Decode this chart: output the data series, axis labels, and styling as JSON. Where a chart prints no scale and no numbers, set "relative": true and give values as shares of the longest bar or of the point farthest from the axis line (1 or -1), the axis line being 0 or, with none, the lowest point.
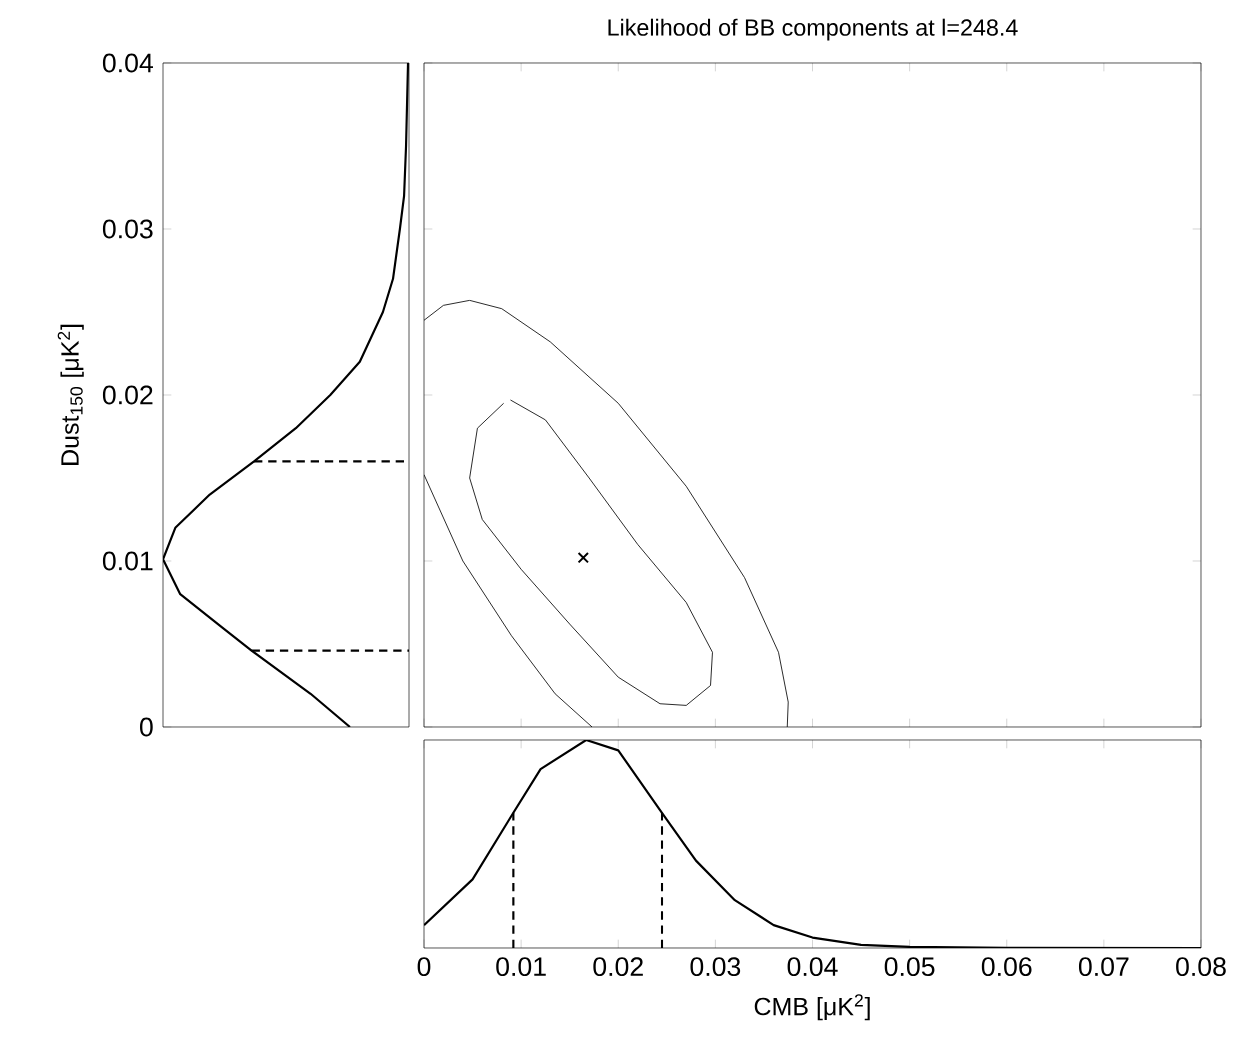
{
  "chart_data": [
    {
      "type": "line",
      "relative": true,
      "orientation": "horizontal",
      "ylabel": "Dust$_{150}$ [μK$^{2}$]",
      "ylim": [
        0,
        0.04
      ],
      "yticks": [
        0,
        0.01,
        0.02,
        0.03,
        0.04
      ],
      "tick_labels": "y",
      "series": [
        {
          "color": "#000000",
          "x": [
            0,
            0.002,
            0.0046,
            0.006,
            0.008,
            0.0101,
            0.012,
            0.014,
            0.016,
            0.018,
            0.02,
            0.022,
            0.025,
            0.027,
            0.03,
            0.032,
            0.035,
            0.04
          ],
          "values": [
            -0.24,
            -0.4,
            -0.64,
            -0.76,
            -0.93,
            -1,
            -0.95,
            -0.81,
            -0.63,
            -0.46,
            -0.32,
            -0.2,
            -0.106,
            -0.065,
            -0.037,
            -0.02,
            -0.012,
            -0.004
          ]
        },
        {
          "color": "#000000",
          "line_style": "dashed",
          "x": [
            0.0046,
            0.0046
          ],
          "values": [
            -0.64,
            0
          ]
        },
        {
          "color": "#000000",
          "line_style": "dashed",
          "x": [
            0.016,
            0.016
          ],
          "values": [
            -0.63,
            0
          ]
        }
      ]
    },
    {
      "type": "line",
      "title": "Likelihood of BB components at l=248.4",
      "xlim": [
        0,
        0.08
      ],
      "ylim": [
        0,
        0.04
      ],
      "xticks": [
        0,
        0.01,
        0.02,
        0.03,
        0.04,
        0.05,
        0.06,
        0.07,
        0.08
      ],
      "yticks": [
        0,
        0.01,
        0.02,
        0.03,
        0.04
      ],
      "tick_labels": false,
      "series": [
        {
          "color": "#000000",
          "x": [
            0.0089,
            0.0125,
            0.017,
            0.022,
            0.027,
            0.0297,
            0.0295,
            0.027,
            0.0243,
            0.02,
            0.015,
            0.01,
            0.006,
            0.0047,
            0.0055,
            0.0082
          ],
          "values": [
            0.0197,
            0.0185,
            0.015,
            0.011,
            0.0075,
            0.0045,
            0.0025,
            0.0013,
            0.0014,
            0.003,
            0.0062,
            0.0095,
            0.0125,
            0.015,
            0.018,
            0.0195
          ]
        },
        {
          "color": "#000000",
          "x": [
            0,
            0.002,
            0.0047,
            0.008,
            0.013,
            0.02,
            0.027,
            0.033,
            0.0365,
            0.0375,
            0.0374
          ],
          "values": [
            0.0245,
            0.0254,
            0.0257,
            0.0252,
            0.0232,
            0.0195,
            0.0145,
            0.009,
            0.0045,
            0.0015,
            0
          ]
        },
        {
          "color": "#000000",
          "x": [
            0,
            0.004,
            0.009,
            0.0135,
            0.0173
          ],
          "values": [
            0.0152,
            0.01,
            0.0055,
            0.002,
            0
          ]
        },
        {
          "type": "scatter",
          "color": "#000000",
          "marker": "cross",
          "x": [
            0.0164
          ],
          "values": [
            0.0102
          ]
        }
      ]
    },
    {
      "type": "line",
      "relative": true,
      "xlabel": "CMB [μK$^{2}$]",
      "xlim": [
        0,
        0.08
      ],
      "xticks": [
        0,
        0.01,
        0.02,
        0.03,
        0.04,
        0.05,
        0.06,
        0.07,
        0.08
      ],
      "tick_labels": "x",
      "series": [
        {
          "color": "#000000",
          "x": [
            0,
            0.005,
            0.0092,
            0.012,
            0.0167,
            0.02,
            0.0245,
            0.028,
            0.032,
            0.036,
            0.04,
            0.045,
            0.05,
            0.06,
            0.08
          ],
          "values": [
            0.11,
            0.33,
            0.65,
            0.86,
            1,
            0.95,
            0.65,
            0.42,
            0.23,
            0.11,
            0.05,
            0.015,
            0.005,
            0.001,
            0
          ]
        },
        {
          "color": "#000000",
          "line_style": "dashed",
          "x": [
            0.0092,
            0.0092
          ],
          "values": [
            0,
            0.65
          ]
        },
        {
          "color": "#000000",
          "line_style": "dashed",
          "x": [
            0.0245,
            0.0245
          ],
          "values": [
            0,
            0.65
          ]
        }
      ]
    }
  ]
}
